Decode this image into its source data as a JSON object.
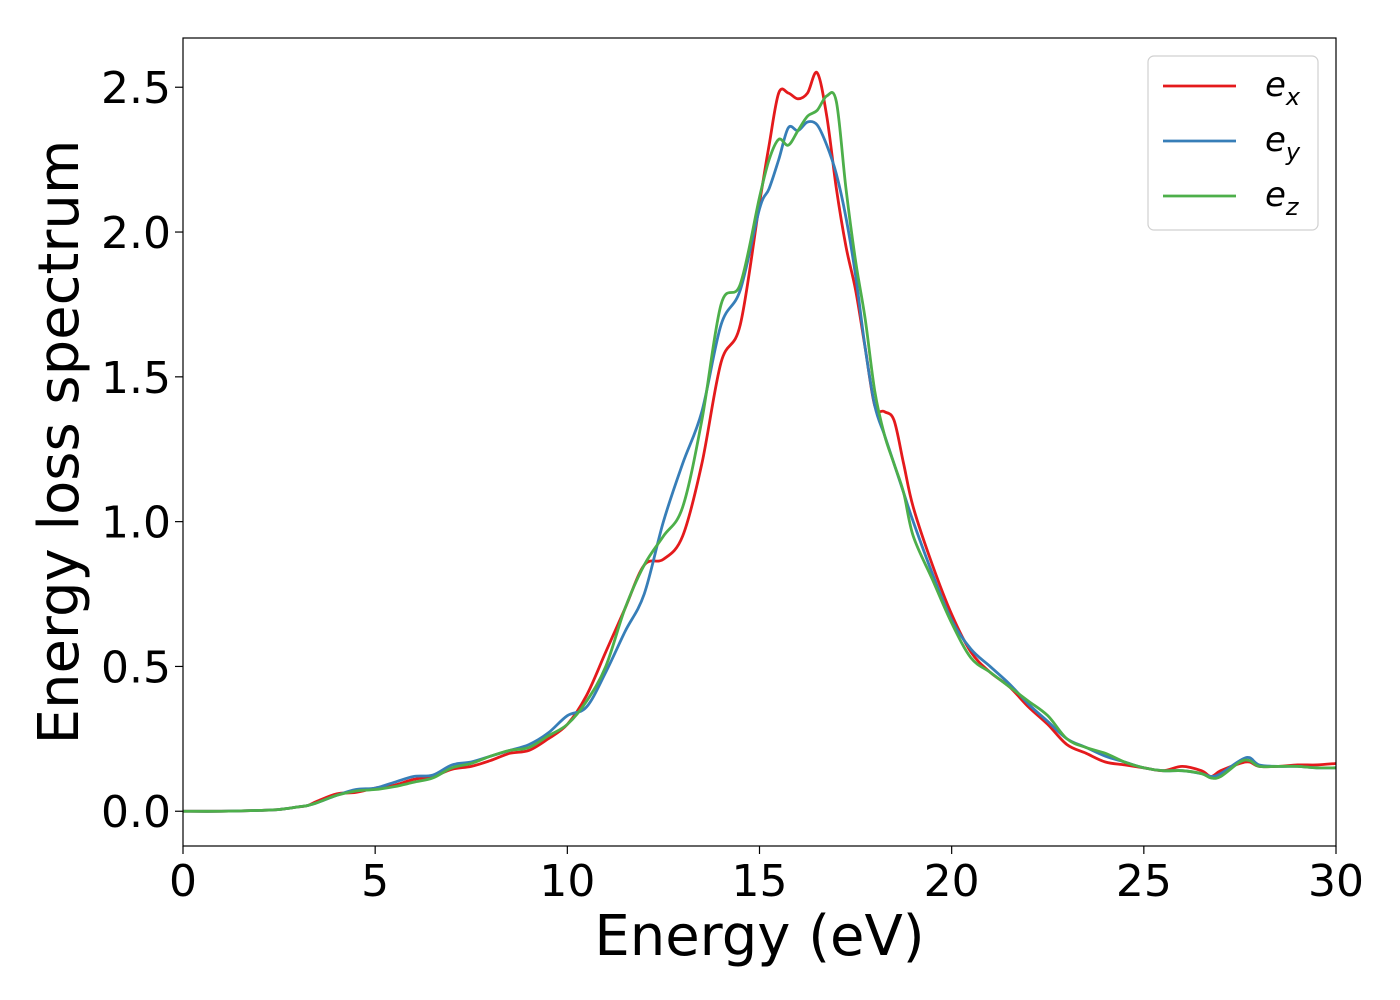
{
  "chart_data": {
    "type": "line",
    "xlabel": "Energy (eV)",
    "ylabel": "Energy loss spectrum",
    "xlim": [
      0,
      30
    ],
    "ylim": [
      -0.12,
      2.67
    ],
    "xticks": [
      0,
      5,
      10,
      15,
      20,
      25,
      30
    ],
    "xtick_labels": [
      "0",
      "5",
      "10",
      "15",
      "20",
      "25",
      "30"
    ],
    "yticks": [
      0.0,
      0.5,
      1.0,
      1.5,
      2.0,
      2.5
    ],
    "ytick_labels": [
      "0.0",
      "0.5",
      "1.0",
      "1.5",
      "2.0",
      "2.5"
    ],
    "grid": false,
    "legend_position": "top-right",
    "x": [
      0,
      1,
      2,
      2.5,
      3,
      3.25,
      3.5,
      4,
      4.5,
      5,
      5.5,
      6,
      6.5,
      7,
      7.5,
      8,
      8.5,
      9,
      9.5,
      10,
      10.5,
      11,
      11.5,
      12,
      12.5,
      13,
      13.5,
      14,
      14.5,
      15,
      15.25,
      15.5,
      15.75,
      16,
      16.25,
      16.5,
      16.75,
      17,
      17.25,
      17.5,
      17.75,
      18,
      18.25,
      18.5,
      18.75,
      19,
      19.5,
      20,
      20.5,
      21,
      21.5,
      22,
      22.5,
      23,
      23.5,
      24,
      24.5,
      25,
      25.5,
      26,
      26.5,
      26.75,
      27,
      27.5,
      27.75,
      28,
      28.5,
      29,
      29.5,
      30
    ],
    "series": [
      {
        "name": "e",
        "name_sub": "x",
        "color": "#e41a1c",
        "values": [
          0.0,
          0.0,
          0.003,
          0.006,
          0.015,
          0.02,
          0.035,
          0.06,
          0.065,
          0.08,
          0.09,
          0.11,
          0.12,
          0.145,
          0.155,
          0.175,
          0.2,
          0.21,
          0.25,
          0.3,
          0.4,
          0.55,
          0.7,
          0.85,
          0.87,
          0.95,
          1.2,
          1.55,
          1.68,
          2.1,
          2.3,
          2.48,
          2.48,
          2.46,
          2.48,
          2.55,
          2.4,
          2.15,
          1.95,
          1.8,
          1.6,
          1.4,
          1.38,
          1.35,
          1.2,
          1.05,
          0.85,
          0.68,
          0.55,
          0.48,
          0.43,
          0.36,
          0.3,
          0.23,
          0.2,
          0.17,
          0.16,
          0.15,
          0.14,
          0.155,
          0.14,
          0.12,
          0.14,
          0.165,
          0.17,
          0.155,
          0.155,
          0.16,
          0.16,
          0.165
        ]
      },
      {
        "name": "e",
        "name_sub": "y",
        "color": "#377eb8",
        "values": [
          0.0,
          0.0,
          0.003,
          0.006,
          0.015,
          0.02,
          0.03,
          0.055,
          0.075,
          0.08,
          0.1,
          0.12,
          0.125,
          0.16,
          0.17,
          0.19,
          0.21,
          0.23,
          0.27,
          0.33,
          0.36,
          0.48,
          0.62,
          0.75,
          1.0,
          1.2,
          1.38,
          1.68,
          1.8,
          2.08,
          2.15,
          2.25,
          2.36,
          2.35,
          2.38,
          2.37,
          2.3,
          2.2,
          2.05,
          1.85,
          1.6,
          1.4,
          1.3,
          1.2,
          1.1,
          1.0,
          0.82,
          0.66,
          0.56,
          0.5,
          0.44,
          0.37,
          0.31,
          0.25,
          0.22,
          0.19,
          0.17,
          0.15,
          0.14,
          0.14,
          0.13,
          0.12,
          0.13,
          0.175,
          0.185,
          0.16,
          0.155,
          0.155,
          0.15,
          0.15
        ]
      },
      {
        "name": "e",
        "name_sub": "z",
        "color": "#4daf4a",
        "values": [
          0.0,
          0.0,
          0.003,
          0.006,
          0.015,
          0.02,
          0.03,
          0.055,
          0.07,
          0.075,
          0.085,
          0.1,
          0.115,
          0.15,
          0.165,
          0.19,
          0.21,
          0.22,
          0.26,
          0.3,
          0.38,
          0.5,
          0.7,
          0.85,
          0.95,
          1.05,
          1.35,
          1.75,
          1.82,
          2.12,
          2.25,
          2.32,
          2.3,
          2.35,
          2.4,
          2.42,
          2.47,
          2.45,
          2.15,
          1.9,
          1.7,
          1.45,
          1.3,
          1.2,
          1.1,
          0.95,
          0.8,
          0.65,
          0.53,
          0.48,
          0.43,
          0.38,
          0.33,
          0.25,
          0.22,
          0.2,
          0.17,
          0.15,
          0.14,
          0.14,
          0.13,
          0.115,
          0.12,
          0.17,
          0.175,
          0.155,
          0.155,
          0.155,
          0.15,
          0.15
        ]
      }
    ]
  }
}
